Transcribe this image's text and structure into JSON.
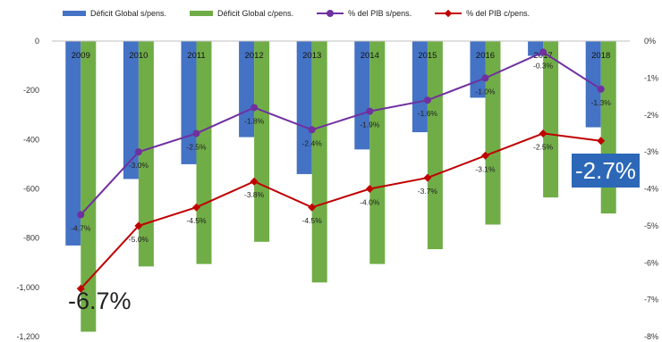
{
  "chart_data": {
    "type": "bar",
    "categories": [
      "2009",
      "2010",
      "2011",
      "2012",
      "2013",
      "2014",
      "2015",
      "2016",
      "2017",
      "2018"
    ],
    "series": [
      {
        "name": "Déficit Global s/pens.",
        "kind": "bar",
        "axis": "left",
        "color": "#4472c4",
        "values": [
          -830,
          -560,
          -500,
          -390,
          -540,
          -440,
          -370,
          -230,
          -60,
          -350
        ]
      },
      {
        "name": "Déficit Global c/pens.",
        "kind": "bar",
        "axis": "left",
        "color": "#70ad47",
        "values": [
          -1180,
          -915,
          -905,
          -815,
          -980,
          -905,
          -845,
          -745,
          -635,
          -700
        ]
      },
      {
        "name": "% del PIB s/pens.",
        "kind": "line",
        "axis": "right",
        "color": "#7030a0",
        "marker": "circle",
        "values": [
          -4.7,
          -3.0,
          -2.5,
          -1.8,
          -2.4,
          -1.9,
          -1.6,
          -1.0,
          -0.3,
          -1.3
        ],
        "labels": [
          "-4.7%",
          "-3.0%",
          "-2.5%",
          "-1.8%",
          "-2.4%",
          "-1.9%",
          "-1.6%",
          "-1.0%",
          "-0.3%",
          "-1.3%"
        ]
      },
      {
        "name": "% del PIB c/pens.",
        "kind": "line",
        "axis": "right",
        "color": "#c00000",
        "marker": "diamond",
        "values": [
          -6.7,
          -5.0,
          -4.5,
          -3.8,
          -4.5,
          -4.0,
          -3.7,
          -3.1,
          -2.5,
          -2.7
        ],
        "labels": [
          "",
          "-5.0%",
          "-4.5%",
          "-3.8%",
          "-4.5%",
          "-4.0%",
          "-3.7%",
          "-3.1%",
          "-2.5%",
          ""
        ]
      }
    ],
    "ylim": [
      -1200,
      0
    ],
    "y_ticks": [
      "0",
      "-200",
      "-400",
      "-600",
      "-800",
      "-1,000",
      "-1,200"
    ],
    "y2lim": [
      -8,
      0
    ],
    "y2_ticks": [
      "0%",
      "-1%",
      "-2%",
      "-3%",
      "-4%",
      "-5%",
      "-6%",
      "-7%",
      "-8%"
    ],
    "callouts": {
      "first": "-6.7%",
      "last": "-2.7%"
    },
    "legend_position": "top"
  }
}
